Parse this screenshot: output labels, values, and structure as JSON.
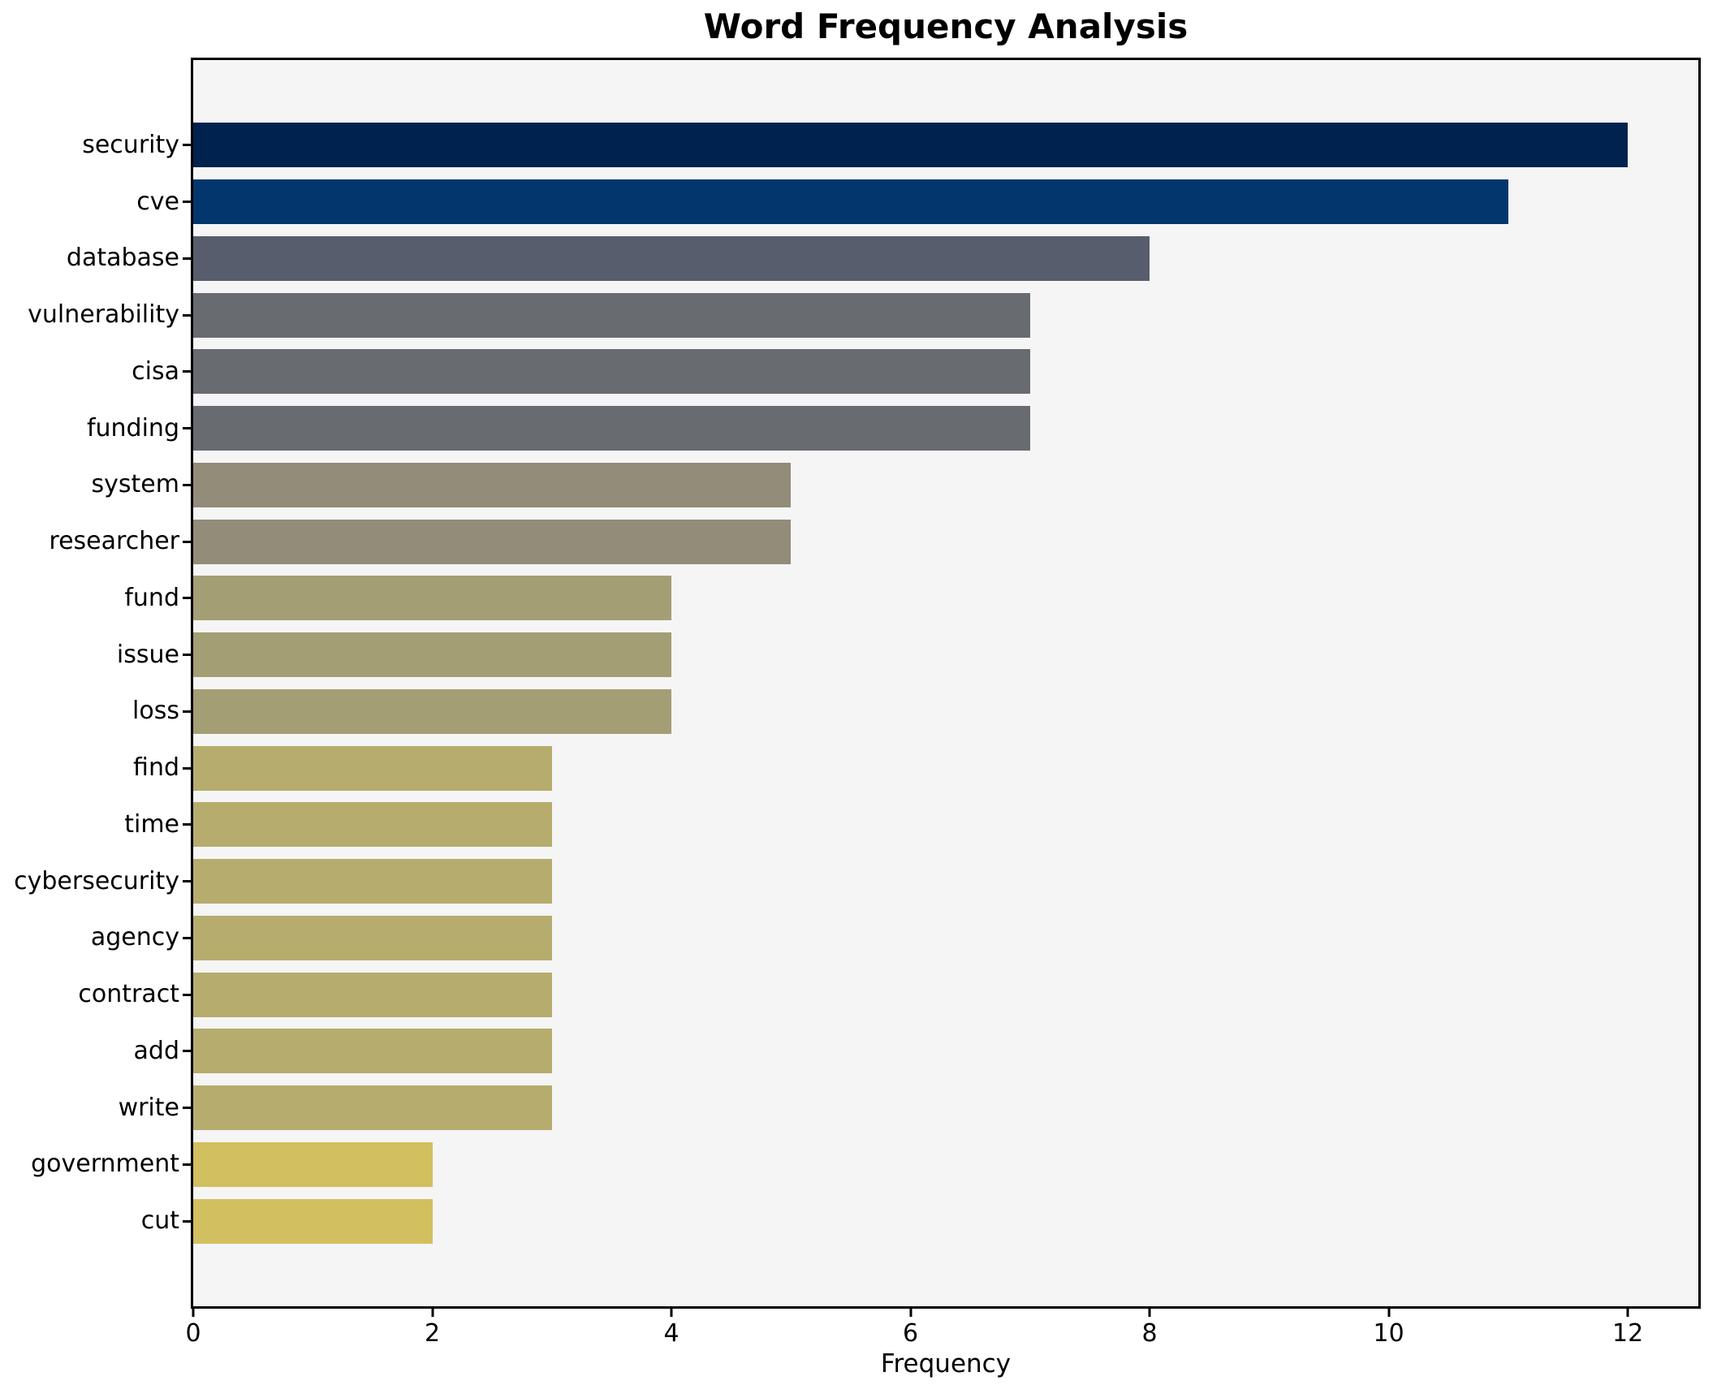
{
  "chart_data": {
    "type": "bar",
    "orientation": "horizontal",
    "title": "Word Frequency Analysis",
    "xlabel": "Frequency",
    "ylabel": "",
    "categories": [
      "security",
      "cve",
      "database",
      "vulnerability",
      "cisa",
      "funding",
      "system",
      "researcher",
      "fund",
      "issue",
      "loss",
      "find",
      "time",
      "cybersecurity",
      "agency",
      "contract",
      "add",
      "write",
      "government",
      "cut"
    ],
    "values": [
      12,
      11,
      8,
      7,
      7,
      7,
      5,
      5,
      4,
      4,
      4,
      3,
      3,
      3,
      3,
      3,
      3,
      3,
      2,
      2
    ],
    "bar_colors": [
      "#00224e",
      "#04366e",
      "#575d6d",
      "#686b70",
      "#686b70",
      "#686b70",
      "#928c78",
      "#928c78",
      "#a49e74",
      "#a49e74",
      "#a49e74",
      "#b6ac6d",
      "#b6ac6d",
      "#b6ac6d",
      "#b6ac6d",
      "#b6ac6d",
      "#b6ac6d",
      "#b6ac6d",
      "#d2bf5f",
      "#d2bf5f"
    ],
    "x_ticks": [
      0,
      2,
      4,
      6,
      8,
      10,
      12
    ],
    "xlim": [
      0,
      12.59
    ],
    "grid": false,
    "legend_position": "none",
    "plot_background": "#f5f5f6",
    "figure_background": "#ffffff",
    "axis_color": "#000000"
  }
}
